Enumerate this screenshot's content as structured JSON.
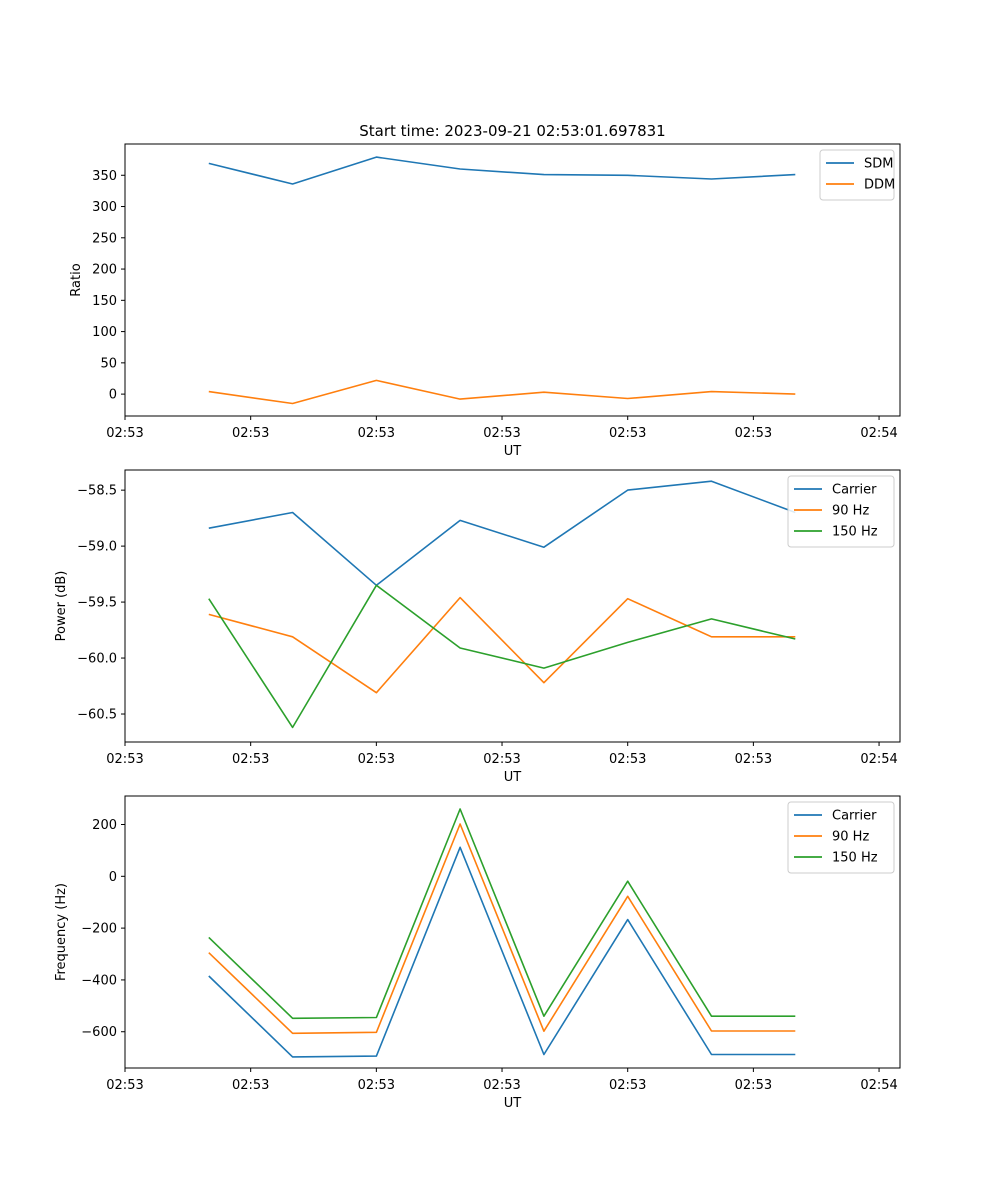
{
  "chart_data": [
    {
      "type": "line",
      "title": "Start time: 2023-09-21 02:53:01.697831",
      "xlabel": "UT",
      "ylabel": "Ratio",
      "x_tick_labels": [
        "02:53",
        "02:53",
        "02:53",
        "02:53",
        "02:53",
        "02:53",
        "02:54"
      ],
      "y_ticks": [
        0,
        50,
        100,
        150,
        200,
        250,
        300,
        350
      ],
      "ylim": [
        -35,
        400
      ],
      "x": [
        1,
        2,
        3,
        4,
        5,
        6,
        7,
        8
      ],
      "xlim": [
        0,
        9.25
      ],
      "legend_position": "upper-right",
      "series": [
        {
          "name": "SDM",
          "color": "#1f77b4",
          "values": [
            369,
            336,
            379,
            360,
            351,
            350,
            344,
            351
          ]
        },
        {
          "name": "DDM",
          "color": "#ff7f0e",
          "values": [
            4,
            -15,
            22,
            -8,
            3,
            -7,
            4,
            0
          ]
        }
      ]
    },
    {
      "type": "line",
      "title": "",
      "xlabel": "UT",
      "ylabel": "Power (dB)",
      "x_tick_labels": [
        "02:53",
        "02:53",
        "02:53",
        "02:53",
        "02:53",
        "02:53",
        "02:54"
      ],
      "y_ticks": [
        -60.5,
        -60.0,
        -59.5,
        -59.0,
        -58.5
      ],
      "y_tick_labels": [
        "−60.5",
        "−60.0",
        "−59.5",
        "−59.0",
        "−58.5"
      ],
      "ylim": [
        -60.75,
        -58.32
      ],
      "x": [
        1,
        2,
        3,
        4,
        5,
        6,
        7,
        8
      ],
      "xlim": [
        0,
        9.25
      ],
      "legend_position": "upper-right",
      "series": [
        {
          "name": "Carrier",
          "color": "#1f77b4",
          "values": [
            -58.84,
            -58.7,
            -59.35,
            -58.77,
            -59.01,
            -58.5,
            -58.42,
            -58.7
          ]
        },
        {
          "name": "90 Hz",
          "color": "#ff7f0e",
          "values": [
            -59.61,
            -59.81,
            -60.31,
            -59.46,
            -60.22,
            -59.47,
            -59.81,
            -59.81
          ]
        },
        {
          "name": "150 Hz",
          "color": "#2ca02c",
          "values": [
            -59.47,
            -60.62,
            -59.35,
            -59.91,
            -60.09,
            -59.86,
            -59.65,
            -59.83
          ]
        }
      ]
    },
    {
      "type": "line",
      "title": "",
      "xlabel": "UT",
      "ylabel": "Frequency (Hz)",
      "x_tick_labels": [
        "02:53",
        "02:53",
        "02:53",
        "02:53",
        "02:53",
        "02:53",
        "02:54"
      ],
      "y_ticks": [
        -600,
        -400,
        -200,
        0,
        200
      ],
      "y_tick_labels": [
        "−600",
        "−400",
        "−200",
        "0",
        "200"
      ],
      "ylim": [
        -740,
        310
      ],
      "x": [
        1,
        2,
        3,
        4,
        5,
        6,
        7,
        8
      ],
      "xlim": [
        0,
        9.25
      ],
      "legend_position": "upper-right",
      "series": [
        {
          "name": "Carrier",
          "color": "#1f77b4",
          "values": [
            -385,
            -697,
            -694,
            112,
            -688,
            -167,
            -688,
            -688
          ]
        },
        {
          "name": "90 Hz",
          "color": "#ff7f0e",
          "values": [
            -295,
            -606,
            -602,
            202,
            -598,
            -77,
            -597,
            -597
          ]
        },
        {
          "name": "150 Hz",
          "color": "#2ca02c",
          "values": [
            -236,
            -548,
            -545,
            260,
            -540,
            -19,
            -540,
            -540
          ]
        }
      ]
    }
  ]
}
